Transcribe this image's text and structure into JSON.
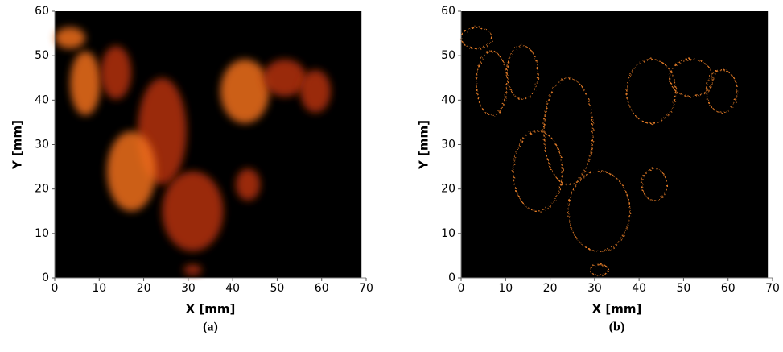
{
  "chart_data": [
    {
      "type": "image",
      "xlabel": "X [mm]",
      "ylabel": "Y [mm]",
      "caption": "(a)",
      "xlim": [
        0,
        70
      ],
      "ylim": [
        0,
        60
      ],
      "xticks": [
        0,
        10,
        20,
        30,
        40,
        50,
        60,
        70
      ],
      "yticks": [
        0,
        10,
        20,
        30,
        40,
        50,
        60
      ]
    },
    {
      "type": "image",
      "xlabel": "X [mm]",
      "ylabel": "Y [mm]",
      "caption": "(b)",
      "xlim": [
        0,
        70
      ],
      "ylim": [
        0,
        60
      ],
      "xticks": [
        0,
        10,
        20,
        30,
        40,
        50,
        60,
        70
      ],
      "yticks": [
        0,
        10,
        20,
        30,
        40,
        50,
        60
      ]
    }
  ]
}
